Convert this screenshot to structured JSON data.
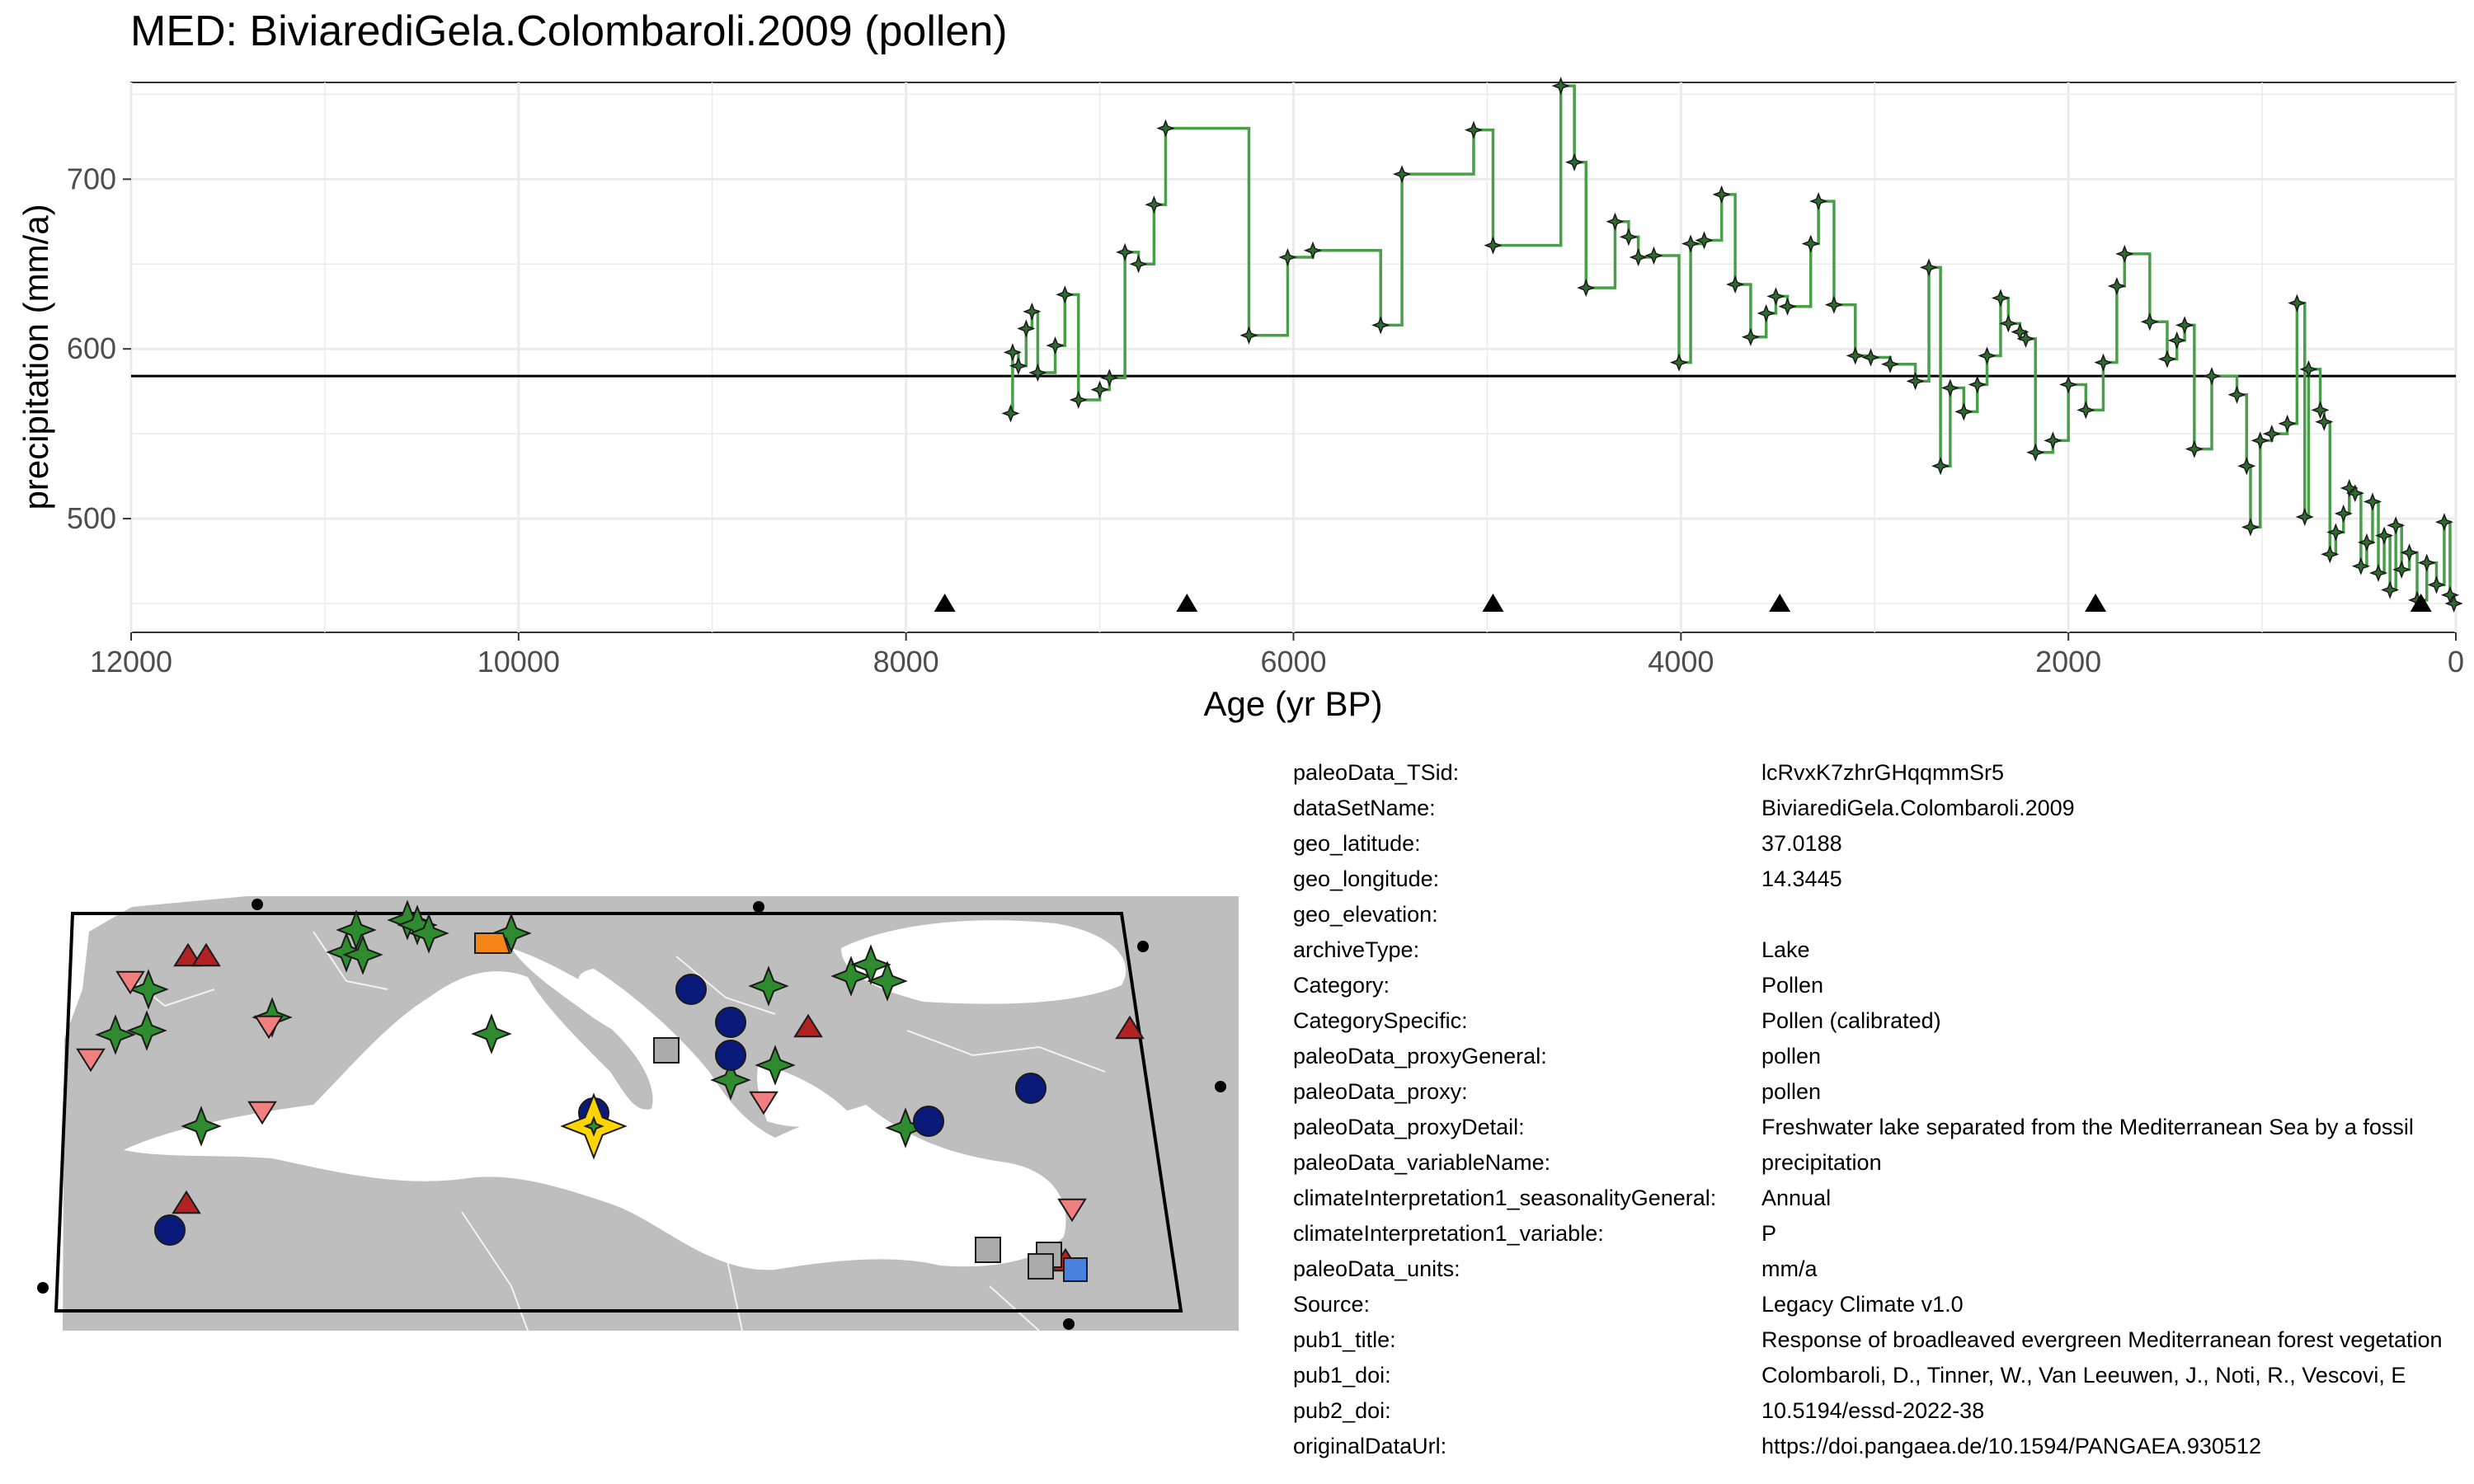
{
  "chart_data": {
    "type": "line",
    "title": "MED: BiviarediGela.Colombaroli.2009 (pollen)",
    "xlabel": "Age (yr BP)",
    "ylabel": "precipitation (mm/a)",
    "xlim": [
      12000,
      0
    ],
    "ylim": [
      433,
      757
    ],
    "x_ticks": [
      12000,
      10000,
      8000,
      6000,
      4000,
      2000,
      0
    ],
    "y_ticks": [
      500,
      600,
      700
    ],
    "grid": true,
    "mean_line": 584,
    "series": [
      {
        "name": "precipitation",
        "color": "#4a9e4a",
        "points": [
          [
            7460,
            562
          ],
          [
            7450,
            598
          ],
          [
            7420,
            590
          ],
          [
            7380,
            612
          ],
          [
            7350,
            622
          ],
          [
            7320,
            586
          ],
          [
            7230,
            602
          ],
          [
            7180,
            632
          ],
          [
            7110,
            570
          ],
          [
            7000,
            576
          ],
          [
            6950,
            583
          ],
          [
            6870,
            657
          ],
          [
            6800,
            650
          ],
          [
            6720,
            685
          ],
          [
            6660,
            730
          ],
          [
            6230,
            608
          ],
          [
            6030,
            654
          ],
          [
            5900,
            658
          ],
          [
            5550,
            614
          ],
          [
            5440,
            703
          ],
          [
            5070,
            729
          ],
          [
            4970,
            661
          ],
          [
            4620,
            755
          ],
          [
            4550,
            710
          ],
          [
            4490,
            636
          ],
          [
            4340,
            675
          ],
          [
            4270,
            666
          ],
          [
            4220,
            654
          ],
          [
            4140,
            655
          ],
          [
            4010,
            592
          ],
          [
            3950,
            662
          ],
          [
            3880,
            664
          ],
          [
            3790,
            691
          ],
          [
            3720,
            638
          ],
          [
            3640,
            607
          ],
          [
            3560,
            621
          ],
          [
            3510,
            631
          ],
          [
            3450,
            625
          ],
          [
            3330,
            662
          ],
          [
            3290,
            687
          ],
          [
            3210,
            626
          ],
          [
            3100,
            596
          ],
          [
            3020,
            595
          ],
          [
            2920,
            591
          ],
          [
            2790,
            581
          ],
          [
            2720,
            648
          ],
          [
            2660,
            531
          ],
          [
            2610,
            577
          ],
          [
            2540,
            563
          ],
          [
            2470,
            579
          ],
          [
            2420,
            596
          ],
          [
            2350,
            630
          ],
          [
            2310,
            615
          ],
          [
            2250,
            610
          ],
          [
            2220,
            606
          ],
          [
            2170,
            539
          ],
          [
            2080,
            546
          ],
          [
            2000,
            579
          ],
          [
            1910,
            564
          ],
          [
            1820,
            592
          ],
          [
            1750,
            637
          ],
          [
            1710,
            656
          ],
          [
            1580,
            616
          ],
          [
            1490,
            594
          ],
          [
            1440,
            605
          ],
          [
            1400,
            614
          ],
          [
            1350,
            541
          ],
          [
            1260,
            584
          ],
          [
            1130,
            573
          ],
          [
            1080,
            531
          ],
          [
            1060,
            495
          ],
          [
            1010,
            546
          ],
          [
            950,
            550
          ],
          [
            870,
            556
          ],
          [
            820,
            627
          ],
          [
            780,
            501
          ],
          [
            760,
            588
          ],
          [
            700,
            564
          ],
          [
            680,
            557
          ],
          [
            650,
            479
          ],
          [
            620,
            492
          ],
          [
            580,
            503
          ],
          [
            550,
            518
          ],
          [
            520,
            515
          ],
          [
            490,
            472
          ],
          [
            460,
            486
          ],
          [
            430,
            510
          ],
          [
            400,
            468
          ],
          [
            370,
            490
          ],
          [
            340,
            458
          ],
          [
            310,
            496
          ],
          [
            280,
            470
          ],
          [
            240,
            480
          ],
          [
            200,
            452
          ],
          [
            150,
            474
          ],
          [
            100,
            461
          ],
          [
            60,
            498
          ],
          [
            30,
            455
          ],
          [
            10,
            450
          ]
        ]
      }
    ],
    "age_markers": [
      7800,
      6550,
      4970,
      3490,
      1860,
      180
    ]
  },
  "map": {
    "land_color": "#bebebe",
    "water_color": "#ffffff",
    "site_marker": "yellow-star",
    "legend_symbols": [
      "green-star",
      "navy-circle",
      "red-triangle",
      "pink-down-triangle",
      "gray-square",
      "orange-square",
      "blue-square"
    ]
  },
  "metadata": [
    {
      "key": "paleoData_TSid:",
      "value": "lcRvxK7zhrGHqqmmSr5"
    },
    {
      "key": "dataSetName:",
      "value": "BiviarediGela.Colombaroli.2009"
    },
    {
      "key": "geo_latitude:",
      "value": "37.0188"
    },
    {
      "key": "geo_longitude:",
      "value": "14.3445"
    },
    {
      "key": "geo_elevation:",
      "value": ""
    },
    {
      "key": "archiveType:",
      "value": "Lake"
    },
    {
      "key": "Category:",
      "value": "Pollen"
    },
    {
      "key": "CategorySpecific:",
      "value": "Pollen (calibrated)"
    },
    {
      "key": "paleoData_proxyGeneral:",
      "value": "pollen"
    },
    {
      "key": "paleoData_proxy:",
      "value": "pollen"
    },
    {
      "key": "paleoData_proxyDetail:",
      "value": "Freshwater lake separated from the Mediterranean Sea by a fossil"
    },
    {
      "key": "paleoData_variableName:",
      "value": "precipitation"
    },
    {
      "key": "climateInterpretation1_seasonalityGeneral:",
      "value": "Annual"
    },
    {
      "key": "climateInterpretation1_variable:",
      "value": "P"
    },
    {
      "key": "paleoData_units:",
      "value": "mm/a"
    },
    {
      "key": "Source:",
      "value": "Legacy Climate v1.0"
    },
    {
      "key": "pub1_title:",
      "value": "Response of broadleaved evergreen Mediterranean forest vegetation"
    },
    {
      "key": "pub1_doi:",
      "value": "Colombaroli, D., Tinner, W., Van Leeuwen, J., Noti, R., Vescovi, E"
    },
    {
      "key": "pub2_doi:",
      "value": "10.5194/essd-2022-38"
    },
    {
      "key": "originalDataUrl:",
      "value": "https://doi.pangaea.de/10.1594/PANGAEA.930512"
    }
  ]
}
